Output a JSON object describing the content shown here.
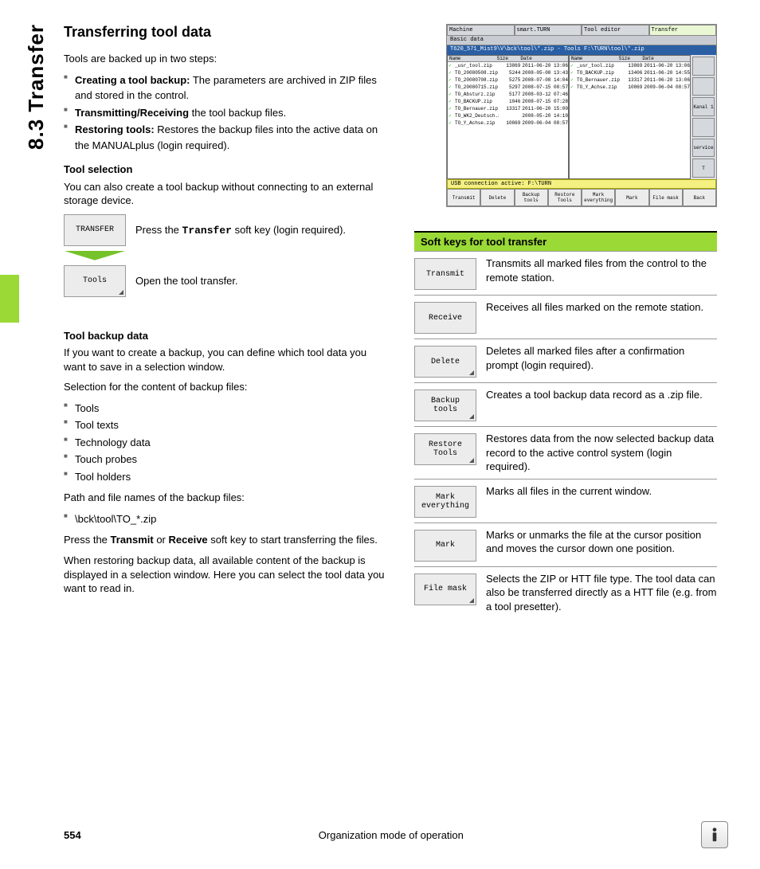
{
  "sideTab": "8.3 Transfer",
  "title": "Transferring tool data",
  "intro": "Tools are backed up in two steps:",
  "bul1": [
    {
      "b": "Creating a tool backup:",
      "t": " The parameters are archived in ZIP files and stored in the control."
    },
    {
      "b": "Transmitting/Receiving",
      "t": " the tool backup files."
    },
    {
      "b": "Restoring tools:",
      "t": " Restores the backup files into the active data on the MANUALplus (login required)."
    }
  ],
  "toolSelHead": "Tool selection",
  "toolSelText": "You can also create a tool backup without connecting to an external storage device.",
  "steps": [
    {
      "key": "TRANSFER",
      "corner": false,
      "desc_pre": "Press the ",
      "desc_mono": "Transfer",
      "desc_post": " soft key (login required)."
    },
    {
      "key": "Tools",
      "corner": true,
      "desc_pre": "Open the tool transfer.",
      "desc_mono": "",
      "desc_post": ""
    }
  ],
  "backupHead": "Tool backup data",
  "backupText": "If you want to create a backup, you can define which tool data you want to save in a selection window.",
  "selText": "Selection for the content of backup files:",
  "selItems": [
    "Tools",
    "Tool texts",
    "Technology data",
    "Touch probes",
    "Tool holders"
  ],
  "pathText": "Path and file names of the backup files:",
  "pathItem": "\\bck\\tool\\TO_*.zip",
  "pressText_pre": "Press the ",
  "pressText_b1": "Transmit",
  "pressText_mid": " or ",
  "pressText_b2": "Receive",
  "pressText_post": " soft key to start transferring the files.",
  "restoreText": "When restoring backup data, all available content of the backup is displayed in a selection window. Here you can select the tool data you want to read in.",
  "screenshot": {
    "tabs": [
      "Machine",
      "smart.TURN",
      "Tool editor",
      "Transfer"
    ],
    "basic": "Basic data",
    "pathBar": "T620_571_Mist9\\V\\bck\\tool\\*.zip - Tools   F:\\TURN\\tool\\*.zip",
    "cols": [
      "Name",
      "Size",
      "Date"
    ],
    "left": [
      {
        "n": "_usr_tool.zip",
        "s": "13869",
        "d": "2011-06-20 13:06"
      },
      {
        "n": "TO_20080508.zip",
        "s": "5244",
        "d": "2008-05-08 13:43"
      },
      {
        "n": "TO_20080708.zip",
        "s": "5275",
        "d": "2008-07-08 14:04"
      },
      {
        "n": "TO_20080715.zip",
        "s": "5297",
        "d": "2008-07-15 08:57"
      },
      {
        "n": "TO_Absturz.zip",
        "s": "5177",
        "d": "2008-03-12 07:46"
      },
      {
        "n": "TO_BACKUP.zip",
        "s": "1046",
        "d": "2008-07-15 07:28"
      },
      {
        "n": "TO_Bernauer.zip",
        "s": "13317",
        "d": "2011-06-20 15:00"
      },
      {
        "n": "TO_WK2_Deutsch.zip",
        "s": "",
        "d": "2008-05-20 14:10"
      },
      {
        "n": "TO_Y_Achse.zip",
        "s": "10869",
        "d": "2009-06-04 08:57"
      }
    ],
    "right": [
      {
        "n": "_usr_tool.zip",
        "s": "13869",
        "d": "2011-06-20 13:06"
      },
      {
        "n": "TO_BACKUP.zip",
        "s": "13406",
        "d": "2011-06-20 14:55"
      },
      {
        "n": "TO_Bernauer.zip",
        "s": "13317",
        "d": "2011-06-20 13:06"
      },
      {
        "n": "TO_Y_Achse.zip",
        "s": "10869",
        "d": "2009-06-04 08:57"
      }
    ],
    "sideBtns": [
      "",
      "",
      "Kanal 1",
      "",
      "service",
      "T"
    ],
    "status": "USB connection active: F:\\TURN",
    "bottom": [
      "Transmit",
      "Delete",
      "Backup\ntools",
      "Restore\nTools",
      "Mark\neverything",
      "Mark",
      "File mask",
      "Back"
    ]
  },
  "skHeader": "Soft keys for tool transfer",
  "skRows": [
    {
      "key": "Transmit",
      "corner": false,
      "desc": "Transmits all marked files from the control to the remote station."
    },
    {
      "key": "Receive",
      "corner": false,
      "desc": "Receives all files marked on the remote station."
    },
    {
      "key": "Delete",
      "corner": true,
      "desc": "Deletes all marked files after a confirmation prompt (login required)."
    },
    {
      "key": "Backup\ntools",
      "corner": true,
      "desc": "Creates a tool backup data record as a .zip file."
    },
    {
      "key": "Restore\nTools",
      "corner": true,
      "desc": "Restores data from the now selected backup data record to the active control system (login required)."
    },
    {
      "key": "Mark\neverything",
      "corner": false,
      "desc": "Marks all files in the current window."
    },
    {
      "key": "Mark",
      "corner": false,
      "desc": "Marks or unmarks the file at the cursor position and moves the cursor down one position."
    },
    {
      "key": "File mask",
      "corner": true,
      "desc": "Selects the ZIP or HTT file type. The tool data can also be transferred directly as a HTT file (e.g. from a tool presetter)."
    }
  ],
  "footer": {
    "page": "554",
    "text": "Organization mode of operation"
  }
}
